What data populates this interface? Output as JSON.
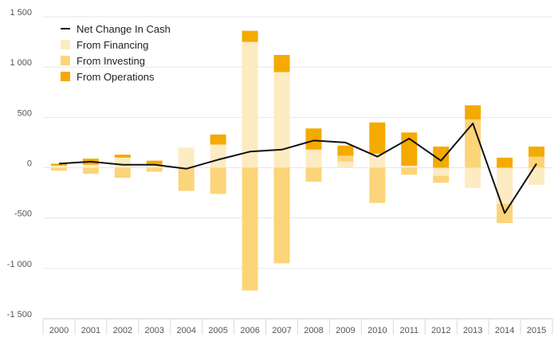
{
  "chart_data": {
    "type": "bar",
    "stacked": true,
    "categories": [
      "2000",
      "2001",
      "2002",
      "2003",
      "2004",
      "2005",
      "2006",
      "2007",
      "2008",
      "2009",
      "2010",
      "2011",
      "2012",
      "2013",
      "2014",
      "2015"
    ],
    "series": [
      {
        "name": "From Financing",
        "kind": "bar",
        "color": "#FDEBC1",
        "values": [
          20,
          30,
          100,
          30,
          200,
          230,
          1250,
          950,
          180,
          60,
          140,
          20,
          -80,
          -200,
          -360,
          -170
        ]
      },
      {
        "name": "From Investing",
        "kind": "bar",
        "color": "#FCD479",
        "values": [
          -30,
          -60,
          -100,
          -40,
          -230,
          -260,
          -1220,
          -950,
          -140,
          60,
          -350,
          -70,
          -70,
          480,
          -190,
          110
        ]
      },
      {
        "name": "From Operations",
        "kind": "bar",
        "color": "#F4AA00",
        "values": [
          20,
          60,
          30,
          40,
          0,
          100,
          110,
          170,
          210,
          100,
          310,
          330,
          210,
          140,
          100,
          100
        ]
      },
      {
        "name": "Net Change In Cash",
        "kind": "line",
        "color": "#111111",
        "values": [
          40,
          60,
          30,
          30,
          -10,
          80,
          160,
          180,
          270,
          250,
          110,
          290,
          70,
          440,
          -450,
          40
        ]
      }
    ],
    "legend_order": [
      "Net Change In Cash",
      "From Financing",
      "From Investing",
      "From Operations"
    ],
    "ylim": [
      -1500,
      1500
    ],
    "yticks": [
      1500,
      1000,
      500,
      0,
      -500,
      -1000,
      -1500
    ],
    "ytick_labels": [
      "1 500",
      "1 000",
      "500",
      "0",
      "-500",
      "-1 000",
      "-1 500"
    ],
    "grid": true,
    "legend_position": "top-left",
    "title": "",
    "xlabel": "",
    "ylabel": ""
  }
}
